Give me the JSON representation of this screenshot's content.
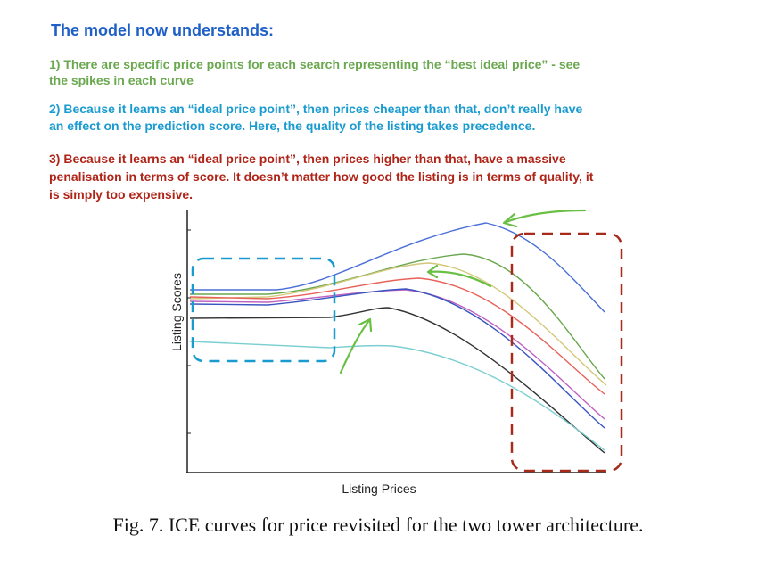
{
  "header": {
    "title": "The model now understands:"
  },
  "points": [
    {
      "lines": [
        "1) There are specific price points for each search representing the “best ideal price” - see",
        "the spikes in each curve"
      ]
    },
    {
      "lines": [
        "2) Because it learns an “ideal price point”, then prices cheaper than that, don’t really have",
        "an effect on the prediction score. Here, the quality of the listing takes precedence."
      ]
    },
    {
      "lines": [
        "3) Because it learns an “ideal price point”, then prices higher than that, have a massive",
        "penalisation in terms of score. It doesn’t matter how good the listing is in terms of quality, it",
        "is simply too expensive."
      ]
    }
  ],
  "figure": {
    "y_label": "Listing  Scores",
    "x_label": "Listing  Prices"
  },
  "caption": "Fig. 7.  ICE curves for price revisited for the two tower architecture."
}
